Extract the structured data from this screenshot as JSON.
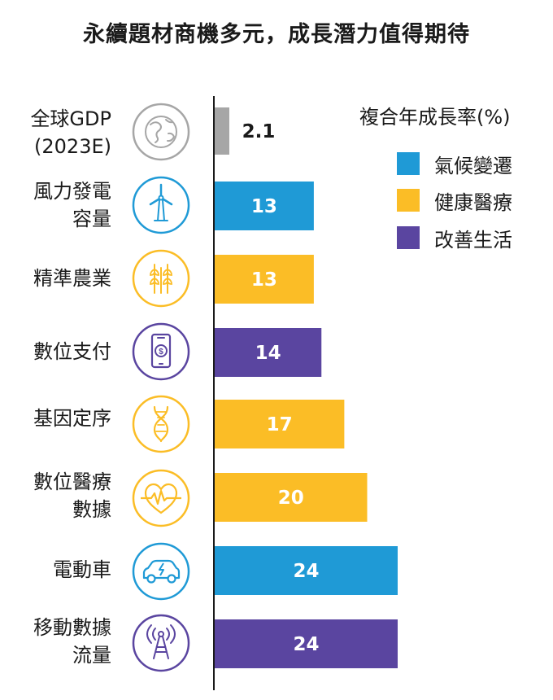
{
  "chart_data": {
    "type": "bar",
    "orientation": "horizontal",
    "title": "永續題材商機多元，成長潛力值得期待",
    "legend_title": "複合年成長率(%)",
    "legend_position": "top-right",
    "grid": false,
    "xlim": [
      0,
      26
    ],
    "categories": [
      [
        "全球GDP",
        "(2023E)"
      ],
      [
        "風力發電",
        "容量"
      ],
      [
        "精準農業"
      ],
      [
        "數位支付"
      ],
      [
        "基因定序"
      ],
      [
        "數位醫療",
        "數據"
      ],
      [
        "電動車"
      ],
      [
        "移動數據",
        "流量"
      ]
    ],
    "values": [
      2.1,
      13,
      13,
      14,
      17,
      20,
      24,
      24
    ],
    "value_labels": [
      "2.1",
      "13",
      "13",
      "14",
      "17",
      "20",
      "24",
      "24"
    ],
    "groups": [
      "全球",
      "氣候變遷",
      "健康醫療",
      "改善生活",
      "健康醫療",
      "健康醫療",
      "氣候變遷",
      "改善生活"
    ],
    "icons": [
      "globe-icon",
      "wind-turbine-icon",
      "wheat-icon",
      "mobile-payment-icon",
      "dna-icon",
      "heartbeat-icon",
      "electric-car-icon",
      "radio-tower-icon"
    ],
    "series": [
      {
        "name": "氣候變遷",
        "color": "#1f9ad6"
      },
      {
        "name": "健康醫療",
        "color": "#fbbd26"
      },
      {
        "name": "改善生活",
        "color": "#5a45a0"
      }
    ],
    "group_colors": {
      "全球": "#a6a6a6",
      "氣候變遷": "#1f9ad6",
      "健康醫療": "#fbbd26",
      "改善生活": "#5a45a0"
    }
  }
}
